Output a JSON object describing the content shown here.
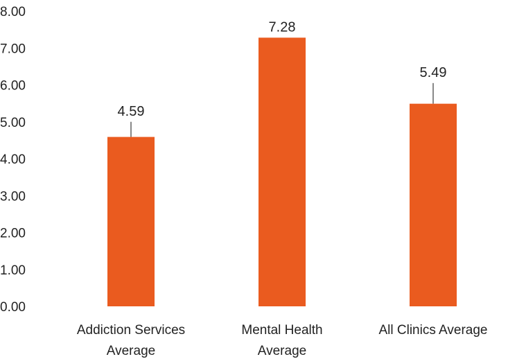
{
  "chart_data": {
    "type": "bar",
    "categories": [
      [
        "Addiction Services",
        "Average"
      ],
      [
        "Mental Health",
        "Average"
      ],
      [
        "All Clinics Average"
      ]
    ],
    "values": [
      4.59,
      7.28,
      5.49
    ],
    "data_labels": [
      "4.59",
      "7.28",
      "5.49"
    ],
    "error_bar_upper": [
      5.0,
      7.28,
      6.05
    ],
    "ylim": [
      0,
      8
    ],
    "y_ticks": [
      "0.00",
      "1.00",
      "2.00",
      "3.00",
      "4.00",
      "5.00",
      "6.00",
      "7.00",
      "8.00"
    ],
    "bar_color": "#ea5b1f",
    "error_bar_color": "#888888",
    "grid": false,
    "legend": "none"
  }
}
